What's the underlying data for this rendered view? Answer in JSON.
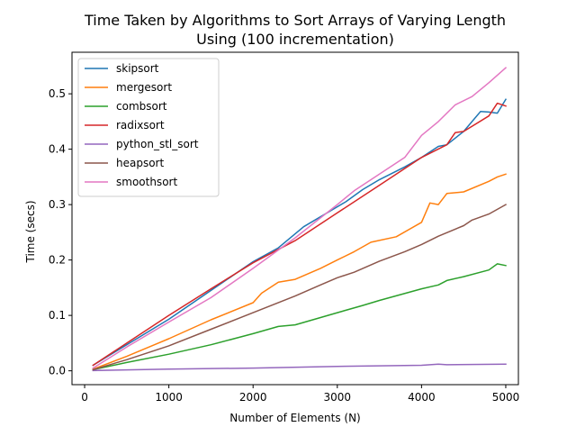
{
  "chart_data": {
    "type": "line",
    "title_lines": [
      "Time Taken by Algorithms to Sort Arrays of Varying Length",
      "Using (100 incrementation)"
    ],
    "xlabel": "Number of Elements (N)",
    "ylabel": "Time (secs)",
    "xlim": [
      -150,
      5150
    ],
    "ylim": [
      -0.025,
      0.575
    ],
    "xticks": [
      0,
      1000,
      2000,
      3000,
      4000,
      5000
    ],
    "yticks": [
      0.0,
      0.1,
      0.2,
      0.3,
      0.4,
      0.5
    ],
    "xtick_labels": [
      "0",
      "1000",
      "2000",
      "3000",
      "4000",
      "5000"
    ],
    "ytick_labels": [
      "0.0",
      "0.1",
      "0.2",
      "0.3",
      "0.4",
      "0.5"
    ],
    "grid": false,
    "legend_position": "upper-left",
    "series": [
      {
        "name": "skipsort",
        "color": "#1f77b4",
        "x": [
          100,
          500,
          1000,
          1500,
          2000,
          2300,
          2600,
          2900,
          3100,
          3300,
          3500,
          3800,
          4000,
          4200,
          4300,
          4500,
          4700,
          4800,
          4900,
          5000
        ],
        "y": [
          0.01,
          0.047,
          0.093,
          0.145,
          0.197,
          0.222,
          0.26,
          0.287,
          0.305,
          0.327,
          0.345,
          0.368,
          0.385,
          0.405,
          0.408,
          0.432,
          0.468,
          0.467,
          0.465,
          0.49
        ]
      },
      {
        "name": "mergesort",
        "color": "#ff7f0e",
        "x": [
          100,
          500,
          1000,
          1500,
          2000,
          2100,
          2300,
          2500,
          2800,
          3000,
          3200,
          3400,
          3700,
          4000,
          4100,
          4200,
          4300,
          4500,
          4800,
          4900,
          5000
        ],
        "y": [
          0.003,
          0.026,
          0.058,
          0.092,
          0.123,
          0.14,
          0.16,
          0.165,
          0.185,
          0.2,
          0.215,
          0.232,
          0.242,
          0.268,
          0.303,
          0.3,
          0.32,
          0.323,
          0.342,
          0.35,
          0.355
        ]
      },
      {
        "name": "combsort",
        "color": "#2ca02c",
        "x": [
          100,
          500,
          1000,
          1500,
          2000,
          2300,
          2500,
          3000,
          3300,
          3500,
          4000,
          4200,
          4300,
          4500,
          4800,
          4900,
          5000
        ],
        "y": [
          0.002,
          0.015,
          0.03,
          0.047,
          0.067,
          0.08,
          0.083,
          0.105,
          0.118,
          0.127,
          0.148,
          0.155,
          0.163,
          0.17,
          0.182,
          0.193,
          0.19
        ]
      },
      {
        "name": "radixsort",
        "color": "#d62728",
        "x": [
          100,
          500,
          1000,
          1500,
          2000,
          2500,
          3000,
          3500,
          4000,
          4300,
          4400,
          4500,
          4800,
          4900,
          5000
        ],
        "y": [
          0.01,
          0.05,
          0.1,
          0.148,
          0.195,
          0.235,
          0.285,
          0.335,
          0.385,
          0.408,
          0.43,
          0.432,
          0.46,
          0.483,
          0.478
        ]
      },
      {
        "name": "python_stl_sort",
        "color": "#9467bd",
        "x": [
          100,
          1000,
          2000,
          3000,
          4000,
          4200,
          4300,
          5000
        ],
        "y": [
          0.0005,
          0.003,
          0.005,
          0.008,
          0.01,
          0.012,
          0.011,
          0.012
        ]
      },
      {
        "name": "heapsort",
        "color": "#8c564b",
        "x": [
          100,
          500,
          1000,
          1500,
          2000,
          2500,
          2800,
          3000,
          3200,
          3500,
          3800,
          4000,
          4200,
          4500,
          4600,
          4800,
          5000
        ],
        "y": [
          0.002,
          0.02,
          0.045,
          0.075,
          0.105,
          0.135,
          0.155,
          0.168,
          0.178,
          0.198,
          0.215,
          0.228,
          0.243,
          0.262,
          0.272,
          0.283,
          0.3
        ]
      },
      {
        "name": "smoothsort",
        "color": "#e377c2",
        "x": [
          100,
          500,
          1000,
          1500,
          2000,
          2500,
          3000,
          3200,
          3500,
          3800,
          4000,
          4200,
          4400,
          4600,
          4800,
          5000
        ],
        "y": [
          0.005,
          0.043,
          0.088,
          0.132,
          0.185,
          0.24,
          0.3,
          0.325,
          0.355,
          0.385,
          0.425,
          0.45,
          0.48,
          0.495,
          0.52,
          0.547
        ]
      }
    ]
  }
}
